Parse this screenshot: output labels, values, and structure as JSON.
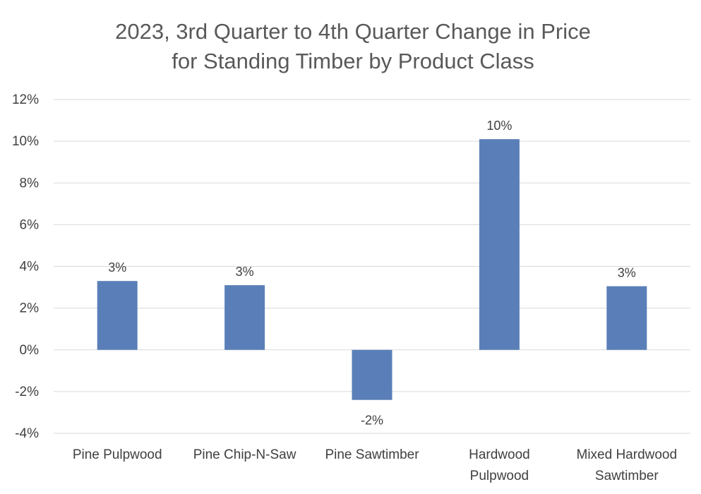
{
  "chart_data": {
    "type": "bar",
    "title_lines": [
      "2023, 3rd Quarter to 4th Quarter Change in Price",
      "for Standing Timber by Product Class"
    ],
    "categories": [
      [
        "Pine Pulpwood"
      ],
      [
        "Pine Chip-N-Saw"
      ],
      [
        "Pine Sawtimber"
      ],
      [
        "Hardwood",
        "Pulpwood"
      ],
      [
        "Mixed Hardwood",
        "Sawtimber"
      ]
    ],
    "values": [
      3.3,
      3.1,
      -2.4,
      10.1,
      3.05
    ],
    "data_labels": [
      "3%",
      "3%",
      "-2%",
      "10%",
      "3%"
    ],
    "ylim": [
      -4,
      12
    ],
    "yticks": [
      12,
      10,
      8,
      6,
      4,
      2,
      0,
      -2,
      -4
    ],
    "ytick_labels": [
      "12%",
      "10%",
      "8%",
      "6%",
      "4%",
      "2%",
      "0%",
      "-2%",
      "-4%"
    ],
    "xlabel": "",
    "ylabel": "",
    "grid": true,
    "legend": "none",
    "bar_color": "#5a7fb8"
  }
}
